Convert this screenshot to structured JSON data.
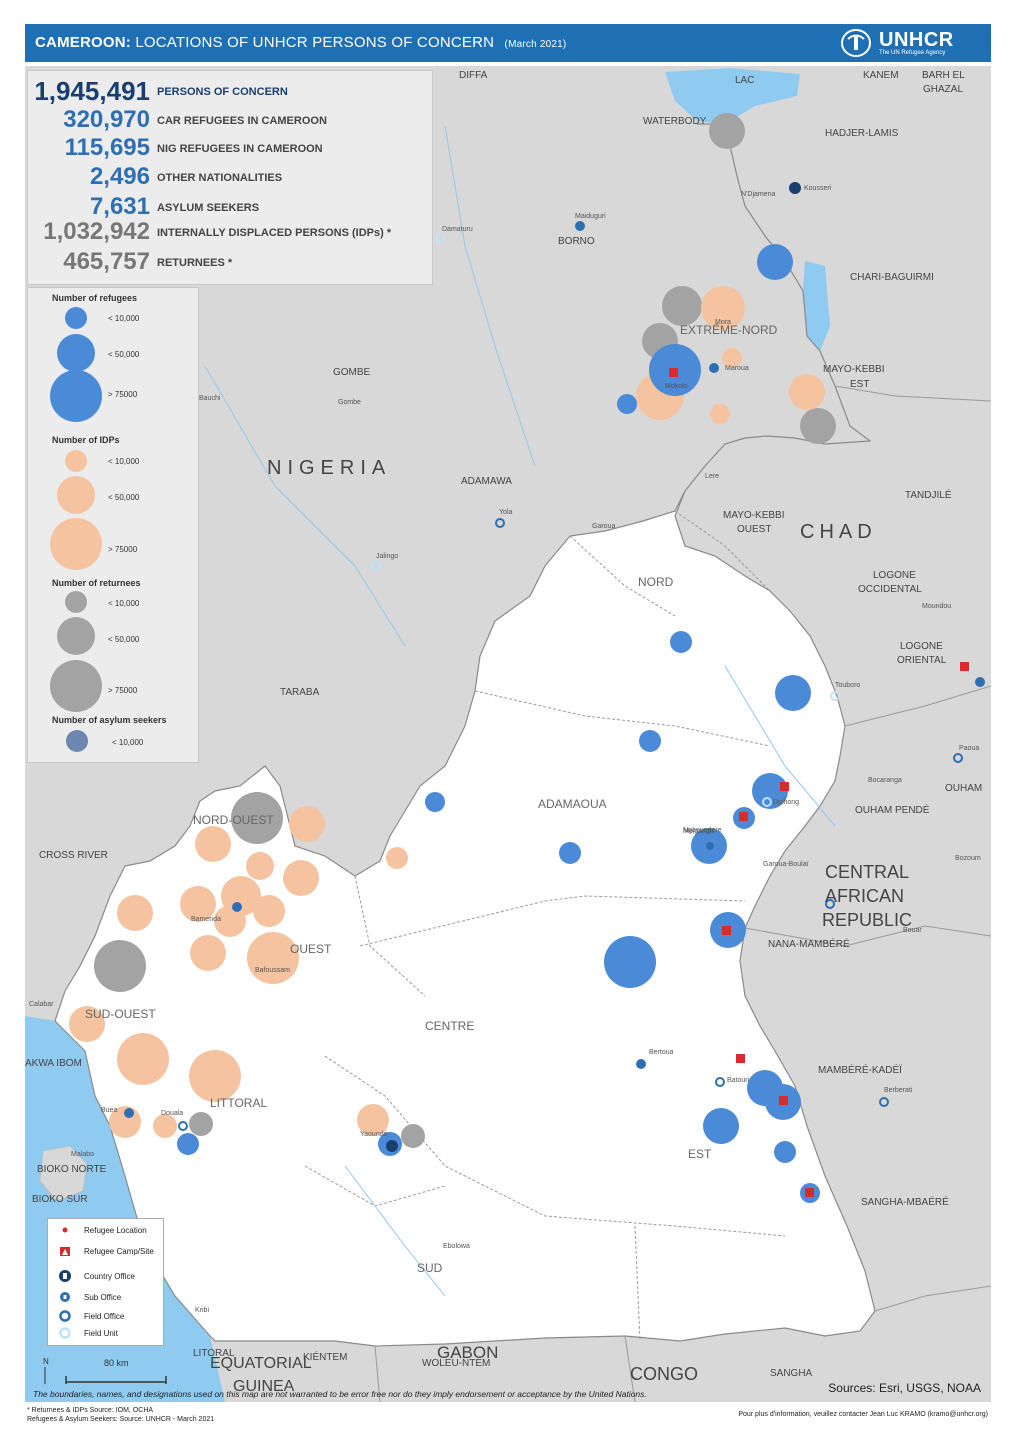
{
  "header": {
    "title_bold": "CAMEROON:",
    "title_rest": "LOCATIONS OF UNHCR PERSONS OF CONCERN",
    "date": "(March 2021)",
    "logo_text": "UNHCR",
    "logo_sub": "The UN Refugee Agency"
  },
  "stats": [
    {
      "value": "1,945,491",
      "label": "PERSONS OF CONCERN",
      "color": "#1a3e6e"
    },
    {
      "value": "320,970",
      "label": "CAR REFUGEES IN CAMEROON",
      "color": "#2e6fb3"
    },
    {
      "value": "115,695",
      "label": "NIG REFUGEES IN CAMEROON",
      "color": "#2e6fb3"
    },
    {
      "value": "2,496",
      "label": "OTHER NATIONALITIES",
      "color": "#2e6fb3"
    },
    {
      "value": "7,631",
      "label": "ASYLUM SEEKERS",
      "color": "#2e6fb3"
    },
    {
      "value": "1,032,942",
      "label": "INTERNALLY DISPLACED PERSONS (IDPs) *",
      "color": "#777777"
    },
    {
      "value": "465,757",
      "label": "RETURNEES *",
      "color": "#777777"
    }
  ],
  "legend": {
    "refugees": {
      "title": "Number of refugees",
      "items": [
        "< 10,000",
        "< 50,000",
        "> 75000"
      ],
      "color": "#4a8ad6"
    },
    "idps": {
      "title": "Number of IDPs",
      "items": [
        "< 10,000",
        "< 50,000",
        "> 75000"
      ],
      "color": "#f5c3a0"
    },
    "returnees": {
      "title": "Number of returnees",
      "items": [
        "< 10,000",
        "< 50,000",
        "> 75000"
      ],
      "color": "#a3a3a3"
    },
    "asylum": {
      "title": "Number of asylum seekers",
      "items": [
        "< 10,000"
      ],
      "color": "#6d87b0"
    }
  },
  "symbol_legend": [
    {
      "label": "Refugee Location",
      "icon": "red-dot-icon"
    },
    {
      "label": "Refugee Camp/Site",
      "icon": "camp-icon"
    },
    {
      "label": "Country Office",
      "icon": "country-office-icon"
    },
    {
      "label": "Sub Office",
      "icon": "sub-office-icon"
    },
    {
      "label": "Field Office",
      "icon": "field-office-icon"
    },
    {
      "label": "Field Unit",
      "icon": "field-unit-icon"
    }
  ],
  "scale_label": "80 km",
  "north_label": "N",
  "map_labels": {
    "countries": [
      {
        "text": "NIGERIA"
      },
      {
        "text": "CHAD"
      },
      {
        "text": "CENTRAL"
      },
      {
        "text": "AFRICAN"
      },
      {
        "text": "REPUBLIC"
      },
      {
        "text": "GABON"
      },
      {
        "text": "CONGO"
      },
      {
        "text": "EQUATORIAL"
      },
      {
        "text": "GUINEA"
      }
    ],
    "regions": [
      {
        "text": "EXTRÊME-NORD"
      },
      {
        "text": "NORD"
      },
      {
        "text": "ADAMAOUA"
      },
      {
        "text": "NORD-OUEST"
      },
      {
        "text": "OUEST"
      },
      {
        "text": "SUD-OUEST"
      },
      {
        "text": "LITTORAL"
      },
      {
        "text": "CENTRE"
      },
      {
        "text": "EST"
      },
      {
        "text": "SUD"
      }
    ],
    "neighbors": [
      {
        "text": "DIFFA"
      },
      {
        "text": "LAC"
      },
      {
        "text": "KANEM"
      },
      {
        "text": "BARH EL"
      },
      {
        "text": "GHAZAL"
      },
      {
        "text": "WATERBODY"
      },
      {
        "text": "HADJER-LAMIS"
      },
      {
        "text": "BORNO"
      },
      {
        "text": "CHARI-BAGUIRMI"
      },
      {
        "text": "MAYO-KEBBI"
      },
      {
        "text": "EST"
      },
      {
        "text": "GOMBE"
      },
      {
        "text": "ADAMAWA"
      },
      {
        "text": "TANDJILÉ"
      },
      {
        "text": "MAYO-KEBBI"
      },
      {
        "text": "OUEST"
      },
      {
        "text": "LOGONE"
      },
      {
        "text": "OCCIDENTAL"
      },
      {
        "text": "LOGONE"
      },
      {
        "text": "ORIENTAL"
      },
      {
        "text": "TARABA"
      },
      {
        "text": "OUHAM"
      },
      {
        "text": "OUHAM PENDÉ"
      },
      {
        "text": "CROSS RIVER"
      },
      {
        "text": "NANA-MAMBÉRÉ"
      },
      {
        "text": "MAMBÉRÉ-KADÉÏ"
      },
      {
        "text": "SANGHA-MBAÉRÉ"
      },
      {
        "text": "BIOKO NORTE"
      },
      {
        "text": "BIOKO SUR"
      },
      {
        "text": "AKWA IBOM"
      },
      {
        "text": "KIÉNTEM"
      },
      {
        "text": "LITORAL"
      },
      {
        "text": "WOLEU-NTEM"
      },
      {
        "text": "SANGHA"
      }
    ],
    "cities": [
      {
        "text": "Maiduguri"
      },
      {
        "text": "Damaturu"
      },
      {
        "text": "Gombe"
      },
      {
        "text": "Bauchi"
      },
      {
        "text": "Yola"
      },
      {
        "text": "Jalingo"
      },
      {
        "text": "Maroua"
      },
      {
        "text": "Garoua"
      },
      {
        "text": "Ngaoundere"
      },
      {
        "text": "Meiganga"
      },
      {
        "text": "Bertoua"
      },
      {
        "text": "Batouri"
      },
      {
        "text": "Yaoundé"
      },
      {
        "text": "Douala"
      },
      {
        "text": "Buea"
      },
      {
        "text": "Bamenda"
      },
      {
        "text": "Kousseri"
      },
      {
        "text": "N'Djamena"
      },
      {
        "text": "Touboro"
      },
      {
        "text": "Djohong"
      },
      {
        "text": "Berberati"
      },
      {
        "text": "Bozoum"
      },
      {
        "text": "Paoua"
      },
      {
        "text": "Bouar"
      },
      {
        "text": "Bocaranga"
      },
      {
        "text": "Malabo"
      },
      {
        "text": "Moundou"
      },
      {
        "text": "Mokolo"
      },
      {
        "text": "Mora"
      },
      {
        "text": "Lere"
      },
      {
        "text": "Ebolowa"
      },
      {
        "text": "Kribi"
      },
      {
        "text": "Bafoussam"
      },
      {
        "text": "Garoua-Boulaï"
      },
      {
        "text": "Calabar"
      }
    ]
  },
  "disclaimer": "The boundaries, names, and designations used on this map are not warranted to be error free nor do they imply endorsement or acceptance by the United Nations.",
  "sources": "Sources: Esri, USGS, NOAA",
  "footnotes": [
    "* Returnees & IDPs Source: IOM, OCHA",
    "Refugees & Asylum Seekers: Source: UNHCR - March 2021"
  ],
  "contact": "Pour plus d'information, veuillez contacter Jean Luc KRAMO (kramo@unhcr.org)",
  "colors": {
    "header": "#1f6fb5",
    "refugee": "#4a8ad6",
    "idp": "#f5c3a0",
    "returnee": "#a3a3a3",
    "asylum": "#6d87b0",
    "land_out": "#d8d8d8",
    "cameroon": "#ffffff",
    "water": "#8fcaf0"
  }
}
